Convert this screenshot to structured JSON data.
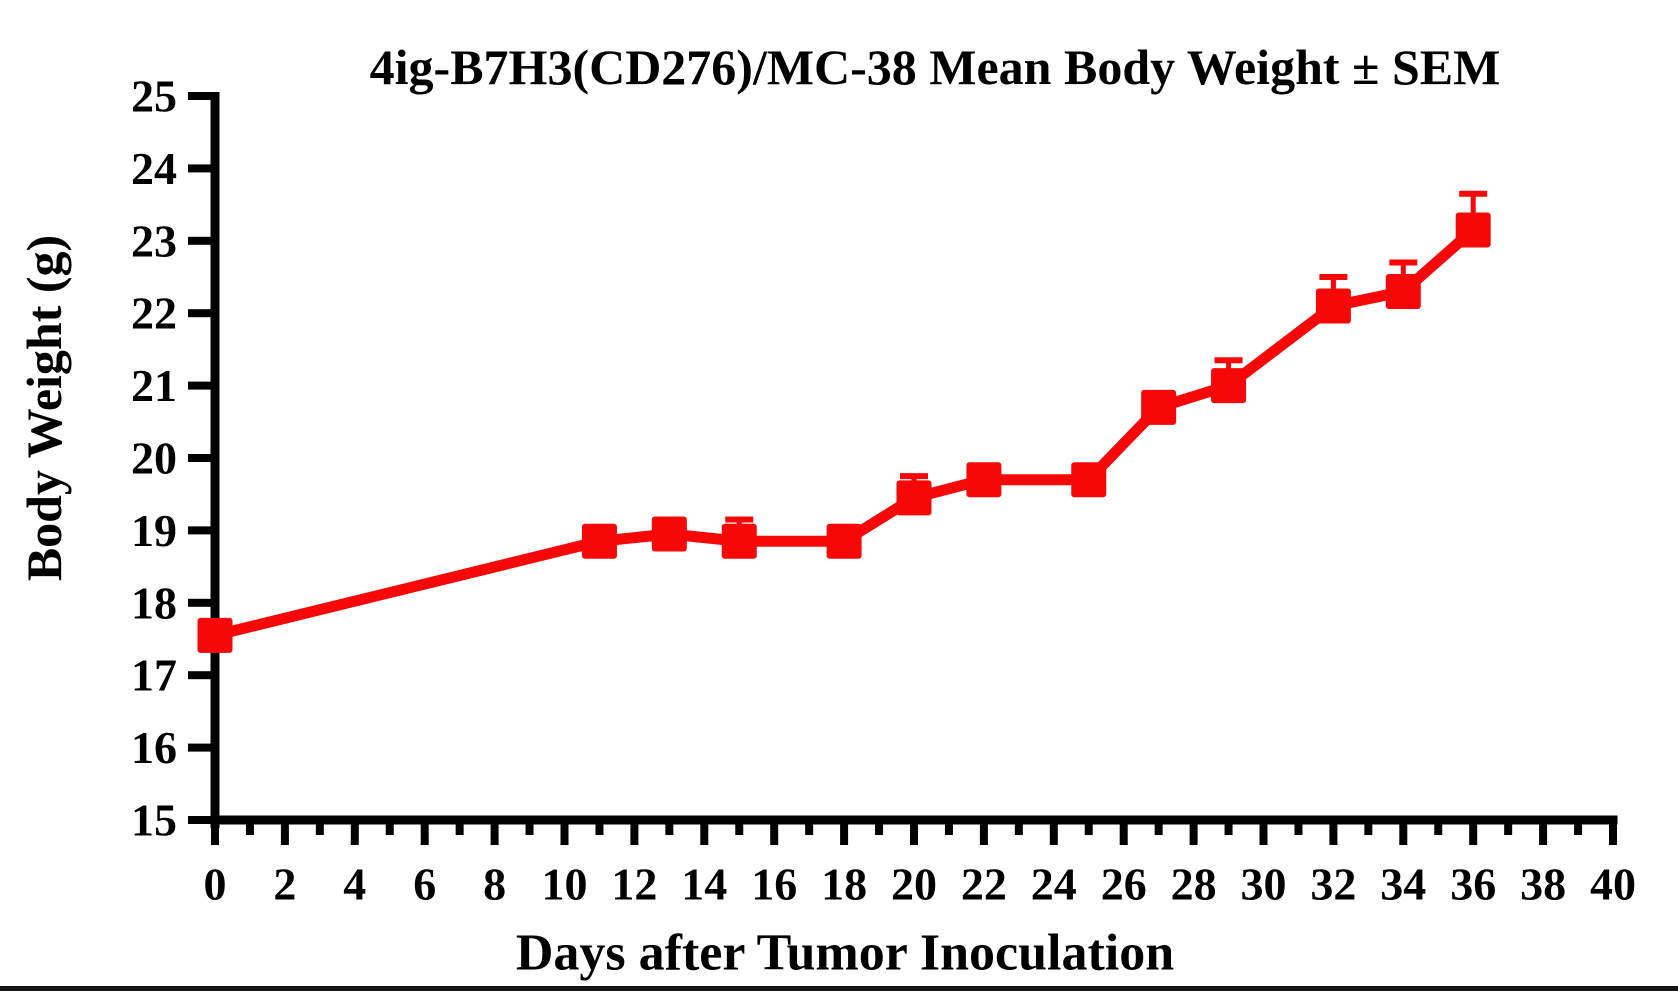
{
  "chart_data": {
    "type": "line",
    "title": "4ig-B7H3(CD276)/MC-38 Mean Body Weight ± SEM",
    "xlabel": "Days after Tumor Inoculation",
    "ylabel": "Body Weight (g)",
    "xlim": [
      0,
      40
    ],
    "ylim": [
      15,
      25
    ],
    "x_ticks_labeled": [
      0,
      2,
      4,
      6,
      8,
      10,
      12,
      14,
      16,
      18,
      20,
      22,
      24,
      26,
      28,
      30,
      32,
      34,
      36,
      38,
      40
    ],
    "x_minor_tick_step": 1,
    "y_ticks": [
      15,
      16,
      17,
      18,
      19,
      20,
      21,
      22,
      23,
      24,
      25
    ],
    "grid": false,
    "legend_position": "none",
    "axis_color": "#000000",
    "series": [
      {
        "name": "4ig-B7H3(CD276)/MC-38",
        "color": "#f60808",
        "marker": "square",
        "error_bar_type": "SEM (upper)",
        "x": [
          0,
          11,
          13,
          15,
          18,
          20,
          22,
          25,
          27,
          29,
          32,
          34,
          36
        ],
        "y": [
          17.55,
          18.85,
          18.95,
          18.85,
          18.85,
          19.45,
          19.7,
          19.7,
          20.7,
          21.0,
          22.1,
          22.3,
          23.15
        ],
        "sem_upper": [
          null,
          null,
          null,
          0.3,
          null,
          0.3,
          null,
          null,
          null,
          0.35,
          0.4,
          0.4,
          0.5
        ]
      }
    ]
  }
}
